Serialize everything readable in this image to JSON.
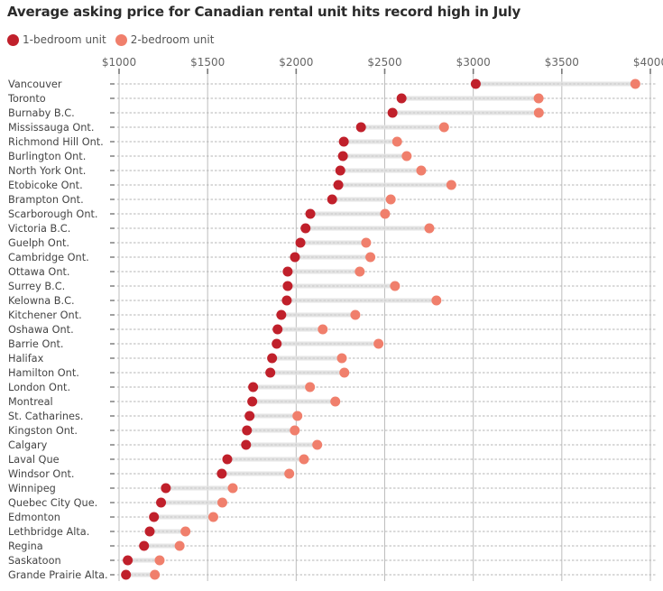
{
  "chart_data": {
    "type": "dumbbell",
    "title": "Average asking price for Canadian rental unit hits record high in July",
    "xlabel": "",
    "ylabel": "",
    "xlim": [
      1000,
      4000
    ],
    "x_ticks": [
      1000,
      1500,
      2000,
      2500,
      3000,
      3500,
      4000
    ],
    "x_tick_labels": [
      "$1000",
      "$1500",
      "$2000",
      "$2500",
      "$3000",
      "$3500",
      "$4000"
    ],
    "grid": true,
    "legend_position": "top-left",
    "colors": {
      "one_bedroom": "#c0202b",
      "two_bedroom": "#f07f6c",
      "connector": "#e2e2e2",
      "grid": "#bdbdbd"
    },
    "series": [
      {
        "name": "1-bedroom unit",
        "key": "one_bedroom"
      },
      {
        "name": "2-bedroom unit",
        "key": "two_bedroom"
      }
    ],
    "categories": [
      "Vancouver",
      "Toronto",
      "Burnaby B.C.",
      "Mississauga Ont.",
      "Richmond Hill Ont.",
      "Burlington Ont.",
      "North York Ont.",
      "Etobicoke Ont.",
      "Brampton Ont.",
      "Scarborough Ont.",
      "Victoria B.C.",
      "Guelph Ont.",
      "Cambridge Ont.",
      "Ottawa Ont.",
      "Surrey B.C.",
      "Kelowna B.C.",
      "Kitchener Ont.",
      "Oshawa Ont.",
      "Barrie Ont.",
      "Halifax",
      "Hamilton Ont.",
      "London Ont.",
      "Montreal",
      "St. Catharines.",
      "Kingston Ont.",
      "Calgary",
      "Laval Que",
      "Windsor Ont.",
      "Winnipeg",
      "Quebec City Que.",
      "Edmonton",
      "Lethbridge Alta.",
      "Regina",
      "Saskatoon",
      "Grande Prairie Alta."
    ],
    "one_bedroom": [
      3014,
      2595,
      2544,
      2366,
      2269,
      2264,
      2249,
      2238,
      2203,
      2080,
      2053,
      2024,
      1993,
      1952,
      1952,
      1947,
      1916,
      1895,
      1890,
      1864,
      1854,
      1757,
      1752,
      1737,
      1722,
      1717,
      1611,
      1580,
      1264,
      1237,
      1197,
      1173,
      1141,
      1049,
      1039
    ],
    "two_bedroom": [
      3915,
      3369,
      3370,
      2835,
      2570,
      2624,
      2706,
      2876,
      2534,
      2502,
      2752,
      2395,
      2419,
      2359,
      2558,
      2792,
      2334,
      2150,
      2465,
      2258,
      2272,
      2078,
      2221,
      2007,
      1992,
      2119,
      2044,
      1961,
      1642,
      1583,
      1532,
      1375,
      1342,
      1229,
      1202
    ]
  }
}
